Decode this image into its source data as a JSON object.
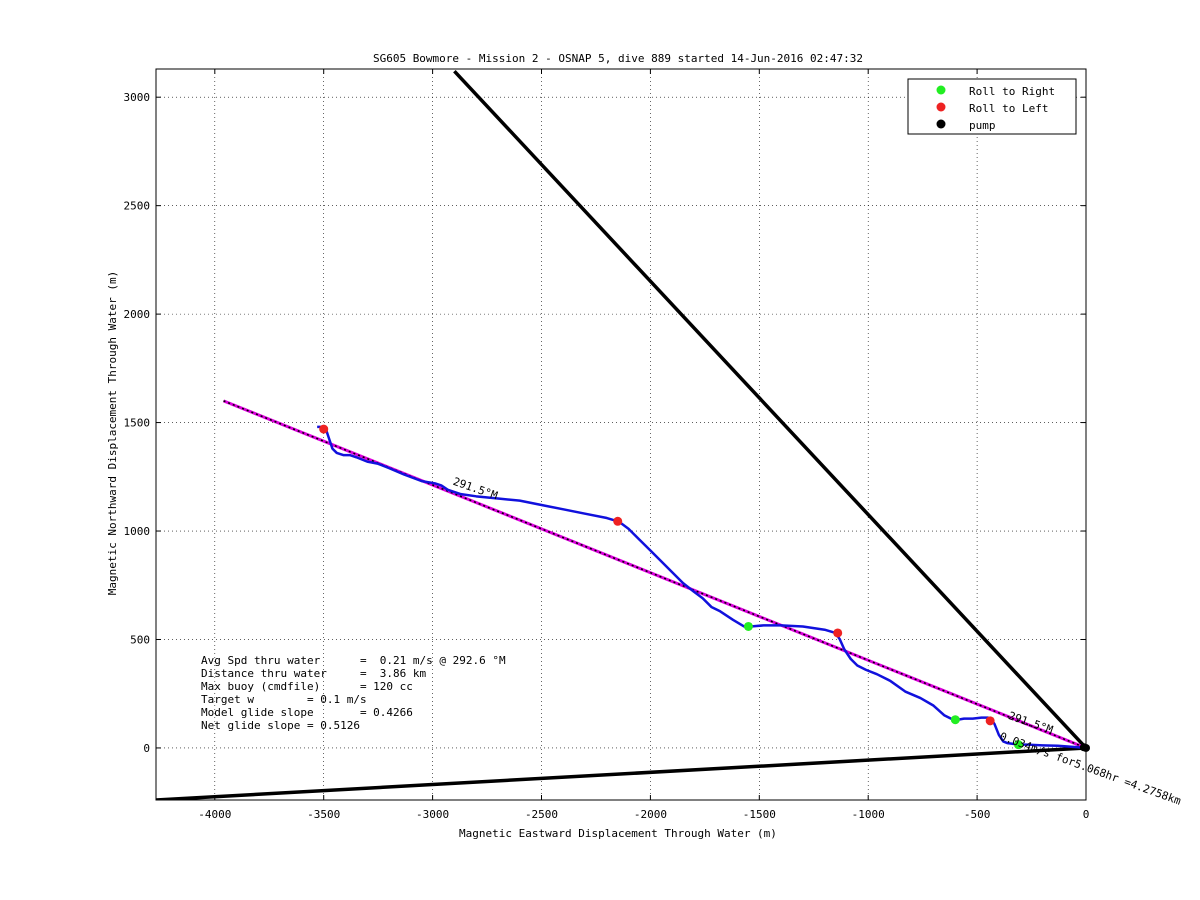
{
  "chart_data": {
    "type": "line",
    "title": "SG605 Bowmore - Mission 2 - OSNAP 5, dive 889 started 14-Jun-2016 02:47:32",
    "xlabel": "Magnetic Eastward Displacement Through Water (m)",
    "ylabel": "Magnetic Northward Displacement Through Water (m)",
    "xlim": [
      -4270,
      0
    ],
    "ylim": [
      -240,
      3130
    ],
    "x_ticks": [
      -4000,
      -3500,
      -3000,
      -2500,
      -2000,
      -1500,
      -1000,
      -500,
      0
    ],
    "y_ticks": [
      0,
      500,
      1000,
      1500,
      2000,
      2500,
      3000
    ],
    "x_tick_labels": [
      "-4000",
      "-3500",
      "-3000",
      "-2500",
      "-2000",
      "-1500",
      "-1000",
      "-500",
      "0"
    ],
    "y_tick_labels": [
      "0",
      "500",
      "1000",
      "1500",
      "2000",
      "2500",
      "3000"
    ],
    "grid": true,
    "legend_position": "top-right",
    "legend": [
      {
        "label": "Roll to Right",
        "color": "#22ee22"
      },
      {
        "label": "Roll to Left",
        "color": "#ee2222"
      },
      {
        "label": "pump",
        "color": "#000000"
      }
    ],
    "series": [
      {
        "color": "#1111dd",
        "x": [
          0,
          -60,
          -130,
          -200,
          -260,
          -300,
          -330,
          -360,
          -380,
          -400,
          -420,
          -430,
          -450,
          -480,
          -520,
          -560,
          -590,
          -620,
          -650,
          -700,
          -760,
          -830,
          -900,
          -960,
          -1010,
          -1050,
          -1080,
          -1110,
          -1130,
          -1150,
          -1200,
          -1300,
          -1400,
          -1480,
          -1540,
          -1570,
          -1620,
          -1680,
          -1720,
          -1760,
          -1800,
          -1850,
          -1900,
          -1950,
          -2000,
          -2050,
          -2100,
          -2140,
          -2150,
          -2200,
          -2300,
          -2400,
          -2500,
          -2600,
          -2700,
          -2800,
          -2870,
          -2930,
          -2960,
          -2990,
          -3050,
          -3130,
          -3200,
          -3250,
          -3300,
          -3350,
          -3380,
          -3410,
          -3440,
          -3460,
          -3470,
          -3480,
          -3490,
          -3510,
          -3530
        ],
        "y": [
          0,
          5,
          10,
          12,
          15,
          16,
          18,
          22,
          30,
          60,
          110,
          125,
          140,
          140,
          135,
          135,
          130,
          135,
          150,
          195,
          230,
          260,
          310,
          340,
          360,
          380,
          410,
          455,
          500,
          530,
          545,
          560,
          565,
          565,
          560,
          560,
          590,
          630,
          650,
          690,
          720,
          760,
          810,
          860,
          910,
          960,
          1010,
          1040,
          1045,
          1060,
          1080,
          1100,
          1120,
          1140,
          1150,
          1160,
          1170,
          1190,
          1210,
          1220,
          1230,
          1260,
          1290,
          1310,
          1320,
          1340,
          1350,
          1350,
          1360,
          1380,
          1410,
          1440,
          1470,
          1480,
          1480
        ]
      },
      {
        "color": "#000000",
        "x": [
          -2900,
          0
        ],
        "y": [
          3120,
          0
        ]
      },
      {
        "color": "#000000",
        "x": [
          -4270,
          0
        ],
        "y": [
          -240,
          0
        ]
      },
      {
        "color": "#dd00dd",
        "x": [
          -3960,
          0
        ],
        "y": [
          1600,
          0
        ]
      }
    ],
    "roll_right_points": {
      "x": [
        -1550,
        -600,
        -310
      ],
      "y": [
        560,
        130,
        15
      ]
    },
    "roll_left_points": {
      "x": [
        -3500,
        -2150,
        -1140,
        -440
      ],
      "y": [
        1470,
        1045,
        530,
        125
      ]
    },
    "pump_points": {
      "x": [
        0,
        -10
      ],
      "y": [
        0,
        3
      ]
    },
    "annotations": [
      {
        "text": "291.5°M",
        "x": -2910,
        "y": 1215,
        "angle": 19
      },
      {
        "text": "291.5°M",
        "x": -360,
        "y": 135,
        "angle": 19
      },
      {
        "text": "0.034m/s for5.068hr =4.2758km",
        "x": -400,
        "y": 40,
        "angle": 20
      }
    ],
    "stats": [
      "Avg Spd thru water      =  0.21 m/s @ 292.6 °M",
      "Distance thru water     =  3.86 km",
      "Max buoy (cmdfile)      = 120 cc",
      "Target w        = 0.1 m/s",
      "Model glide slope       = 0.4266",
      "Net glide slope = 0.5126"
    ]
  }
}
